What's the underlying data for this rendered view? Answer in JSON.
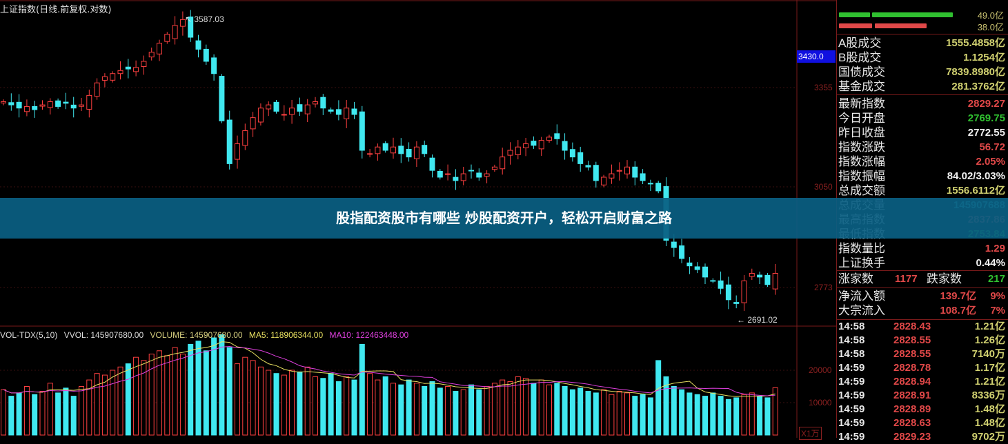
{
  "chart_title": "上证指数(日线.前复权.对数)",
  "annotations": {
    "high": "3587.03",
    "low": "2691.02"
  },
  "price_axis": {
    "labels": [
      "3355",
      "3050",
      "2773"
    ],
    "values": [
      3355,
      3050,
      2773
    ],
    "current": "3430.0",
    "scale": "log"
  },
  "volume_axis": {
    "labels": [
      "20000",
      "10000"
    ],
    "values": [
      20000,
      10000
    ],
    "unit": "X1万"
  },
  "volume_header": {
    "name": "VOL-TDX(5,10)",
    "vvol": "VVOL: 145907680.00",
    "volume": "VOLUME: 145907680.00",
    "ma5": "MA5: 118906344.00",
    "ma10": "MA10: 122463448.00"
  },
  "colors": {
    "up": "#ff4040",
    "down": "#40e8f0",
    "ma5": "#e8e060",
    "ma10": "#e040e0",
    "grid": "#7a1a1a"
  },
  "chart_data": {
    "type": "candlestick",
    "closes": [
      3310,
      3300,
      3290,
      3295,
      3285,
      3300,
      3310,
      3295,
      3305,
      3290,
      3300,
      3330,
      3370,
      3390,
      3400,
      3410,
      3415,
      3420,
      3440,
      3470,
      3500,
      3530,
      3560,
      3580,
      3520,
      3480,
      3440,
      3400,
      3250,
      3120,
      3180,
      3220,
      3260,
      3290,
      3300,
      3280,
      3270,
      3290,
      3280,
      3300,
      3310,
      3290,
      3280,
      3270,
      3290,
      3270,
      3160,
      3150,
      3170,
      3160,
      3170,
      3150,
      3140,
      3170,
      3150,
      3100,
      3080,
      3090,
      3070,
      3090,
      3100,
      3080,
      3090,
      3110,
      3140,
      3160,
      3170,
      3180,
      3175,
      3190,
      3200,
      3195,
      3160,
      3140,
      3120,
      3110,
      3070,
      3080,
      3090,
      3100,
      3110,
      3080,
      3070,
      3060,
      3040,
      2900,
      2880,
      2850,
      2830,
      2820,
      2800,
      2790,
      2770,
      2740,
      2730,
      2790,
      2810,
      2800,
      2780,
      2810
    ],
    "volumes_wan": [
      14000,
      12000,
      13000,
      15000,
      12500,
      13500,
      16000,
      13000,
      14500,
      12000,
      15000,
      17000,
      19000,
      18500,
      20000,
      21000,
      22000,
      24000,
      23000,
      25000,
      26000,
      24500,
      27000,
      25000,
      28000,
      29000,
      26000,
      30000,
      31000,
      27000,
      22000,
      24000,
      23000,
      21000,
      20000,
      19000,
      18500,
      20000,
      19500,
      21000,
      18000,
      17500,
      19000,
      16500,
      18000,
      17000,
      28000,
      19000,
      17000,
      18000,
      16000,
      15500,
      17000,
      16000,
      15000,
      16500,
      14500,
      15000,
      13500,
      14000,
      15500,
      14000,
      15000,
      16000,
      17000,
      16500,
      18000,
      17500,
      16000,
      17000,
      15500,
      16000,
      15000,
      14000,
      14500,
      13500,
      13000,
      14000,
      12500,
      13500,
      13000,
      12000,
      12500,
      11500,
      23000,
      18000,
      15000,
      14000,
      13000,
      12500,
      12000,
      13000,
      12000,
      11000,
      11500,
      12500,
      13000,
      12000,
      11500,
      14600
    ]
  },
  "panel": {
    "bars": [
      {
        "value": "49.0亿"
      },
      {
        "value": "38.0亿"
      }
    ],
    "turnover": [
      {
        "label": "A股成交",
        "value": "1555.4858亿"
      },
      {
        "label": "B股成交",
        "value": "1.1254亿"
      },
      {
        "label": "国债成交",
        "value": "7839.8980亿"
      },
      {
        "label": "基金成交",
        "value": "281.3762亿"
      }
    ],
    "index": [
      {
        "label": "最新指数",
        "value": "2829.27",
        "color": "#e04848"
      },
      {
        "label": "今日开盘",
        "value": "2769.75",
        "color": "#30c030"
      },
      {
        "label": "昨日收盘",
        "value": "2772.55",
        "color": "#f0f0f0"
      },
      {
        "label": "指数涨跌",
        "value": "56.72",
        "color": "#e04848"
      },
      {
        "label": "指数涨幅",
        "value": "2.05%",
        "color": "#e04848"
      },
      {
        "label": "指数振幅",
        "value": "84.02/3.03%",
        "color": "#f0f0f0"
      },
      {
        "label": "总成交额",
        "value": "1556.6112亿",
        "color": "#d0d070"
      },
      {
        "label": "总成交量",
        "value": "145907688",
        "color": "#40c0c0"
      },
      {
        "label": "最高指数",
        "value": "2837.86",
        "color": "#e04848"
      },
      {
        "label": "最低指数",
        "value": "2753.84",
        "color": "#30c030"
      },
      {
        "label": "指数量比",
        "value": "1.29",
        "color": "#e04848"
      },
      {
        "label": "上证换手",
        "value": "0.44%",
        "color": "#f0f0f0"
      }
    ],
    "breadth": {
      "up_label": "涨家数",
      "up_value": "1177",
      "down_label": "跌家数",
      "down_value": "217"
    },
    "flows": [
      {
        "label": "净流入额",
        "value": "139.7亿",
        "pct": "9%"
      },
      {
        "label": "大宗流入",
        "value": "108.7亿",
        "pct": "7%"
      }
    ],
    "ticks": [
      {
        "time": "14:58",
        "price": "2828.43",
        "amount": "1.21亿"
      },
      {
        "time": "14:58",
        "price": "2828.55",
        "amount": "1.26亿"
      },
      {
        "time": "14:58",
        "price": "2828.55",
        "amount": "7140万"
      },
      {
        "time": "14:59",
        "price": "2828.78",
        "amount": "1.17亿"
      },
      {
        "time": "14:59",
        "price": "2828.94",
        "amount": "1.21亿"
      },
      {
        "time": "14:59",
        "price": "2828.91",
        "amount": "8336万"
      },
      {
        "time": "14:59",
        "price": "2828.89",
        "amount": "1.48亿"
      },
      {
        "time": "14:59",
        "price": "2828.63",
        "amount": "1.48亿"
      },
      {
        "time": "14:59",
        "price": "2829.23",
        "amount": "9702万"
      }
    ]
  },
  "banner": "股指配资股市有哪些 炒股配资开户，轻松开启财富之路"
}
